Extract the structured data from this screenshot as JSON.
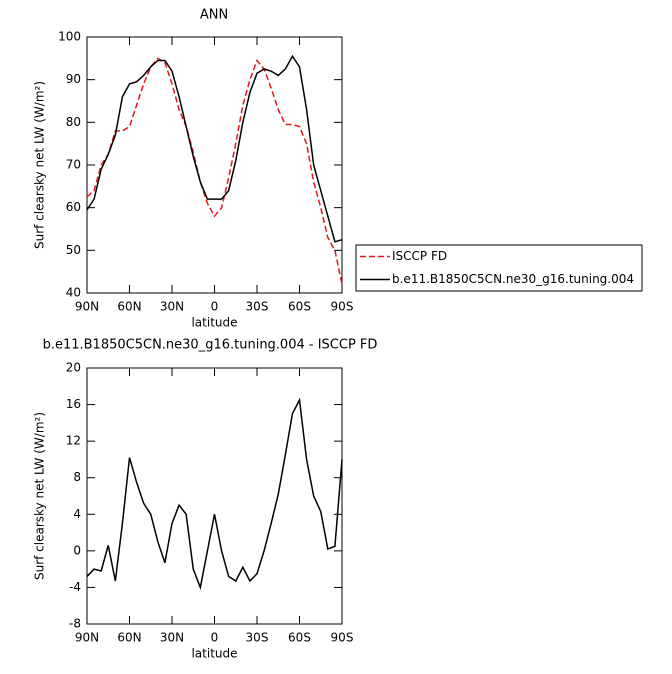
{
  "chart_data": [
    {
      "type": "line",
      "title": "ANN",
      "x_label": "latitude",
      "y_label": "Surf clearsky net LW (W/m²)",
      "x": [
        90,
        85,
        80,
        75,
        70,
        65,
        60,
        55,
        50,
        45,
        40,
        35,
        30,
        25,
        20,
        15,
        10,
        5,
        0,
        -5,
        -10,
        -15,
        -20,
        -25,
        -30,
        -35,
        -40,
        -45,
        -50,
        -55,
        -60,
        -65,
        -70,
        -75,
        -80,
        -85,
        -90
      ],
      "series": [
        {
          "name": "ISCCP FD",
          "color": "#e8151b",
          "linestyle": "dashed",
          "values": [
            62.5,
            64,
            70,
            72.5,
            78,
            78,
            79,
            84,
            89,
            93,
            95,
            94,
            89,
            83,
            79,
            73,
            66,
            61,
            58,
            60,
            67,
            75,
            84,
            90,
            94.5,
            92.5,
            88,
            83,
            79.5,
            79.5,
            79,
            75,
            66,
            60,
            53,
            50,
            42
          ]
        },
        {
          "name": "b.e11.B1850C5CN.ne30_g16.tuning.004",
          "color": "#000000",
          "linestyle": "solid",
          "values": [
            59.5,
            62,
            69,
            72.5,
            77,
            86,
            89,
            89.5,
            91,
            93,
            94.5,
            94.5,
            92,
            86,
            79,
            72,
            66,
            62,
            62,
            62,
            64,
            71,
            80,
            87,
            91.5,
            92.5,
            92,
            91,
            92.5,
            95.5,
            93,
            83,
            70,
            64,
            58,
            52,
            52.5
          ]
        }
      ],
      "xlim": [
        90,
        -90
      ],
      "xticks": [
        {
          "value": 90,
          "label": "90N"
        },
        {
          "value": 60,
          "label": "60N"
        },
        {
          "value": 30,
          "label": "30N"
        },
        0,
        {
          "value": -30,
          "label": "30S"
        },
        {
          "value": -60,
          "label": "60S"
        },
        {
          "value": -90,
          "label": "90S"
        }
      ],
      "ylim": [
        40,
        100
      ],
      "yticks": [
        40,
        50,
        60,
        70,
        80,
        90,
        100
      ],
      "legend": "right"
    },
    {
      "type": "line",
      "title": "b.e11.B1850C5CN.ne30_g16.tuning.004 - ISCCP FD",
      "x_label": "latitude",
      "y_label": "Surf clearsky net LW (W/m²)",
      "x": [
        90,
        85,
        80,
        75,
        70,
        65,
        60,
        55,
        50,
        45,
        40,
        35,
        30,
        25,
        20,
        15,
        10,
        5,
        0,
        -5,
        -10,
        -15,
        -20,
        -25,
        -30,
        -35,
        -40,
        -45,
        -50,
        -55,
        -60,
        -65,
        -70,
        -75,
        -80,
        -85,
        -90
      ],
      "color": "#000000",
      "values": [
        -2.8,
        -2,
        -2.2,
        0.6,
        -3.3,
        3,
        10.2,
        7.5,
        5.2,
        4,
        1,
        -1.3,
        3,
        5,
        4,
        -2,
        -4,
        0,
        4,
        0,
        -2.8,
        -3.3,
        -1.8,
        -3.3,
        -2.5,
        0,
        3,
        6.2,
        10.5,
        15,
        16.5,
        10,
        6,
        4.3,
        0.2,
        0.5,
        10
      ],
      "xlim": [
        90,
        -90
      ],
      "xticks": [
        {
          "value": 90,
          "label": "90N"
        },
        {
          "value": 60,
          "label": "60N"
        },
        {
          "value": 30,
          "label": "30N"
        },
        0,
        {
          "value": -30,
          "label": "30S"
        },
        {
          "value": -60,
          "label": "60S"
        },
        {
          "value": -90,
          "label": "90S"
        }
      ],
      "ylim": [
        -8,
        20
      ],
      "yticks": [
        -8,
        -4,
        0,
        4,
        8,
        12,
        16,
        20
      ]
    }
  ]
}
